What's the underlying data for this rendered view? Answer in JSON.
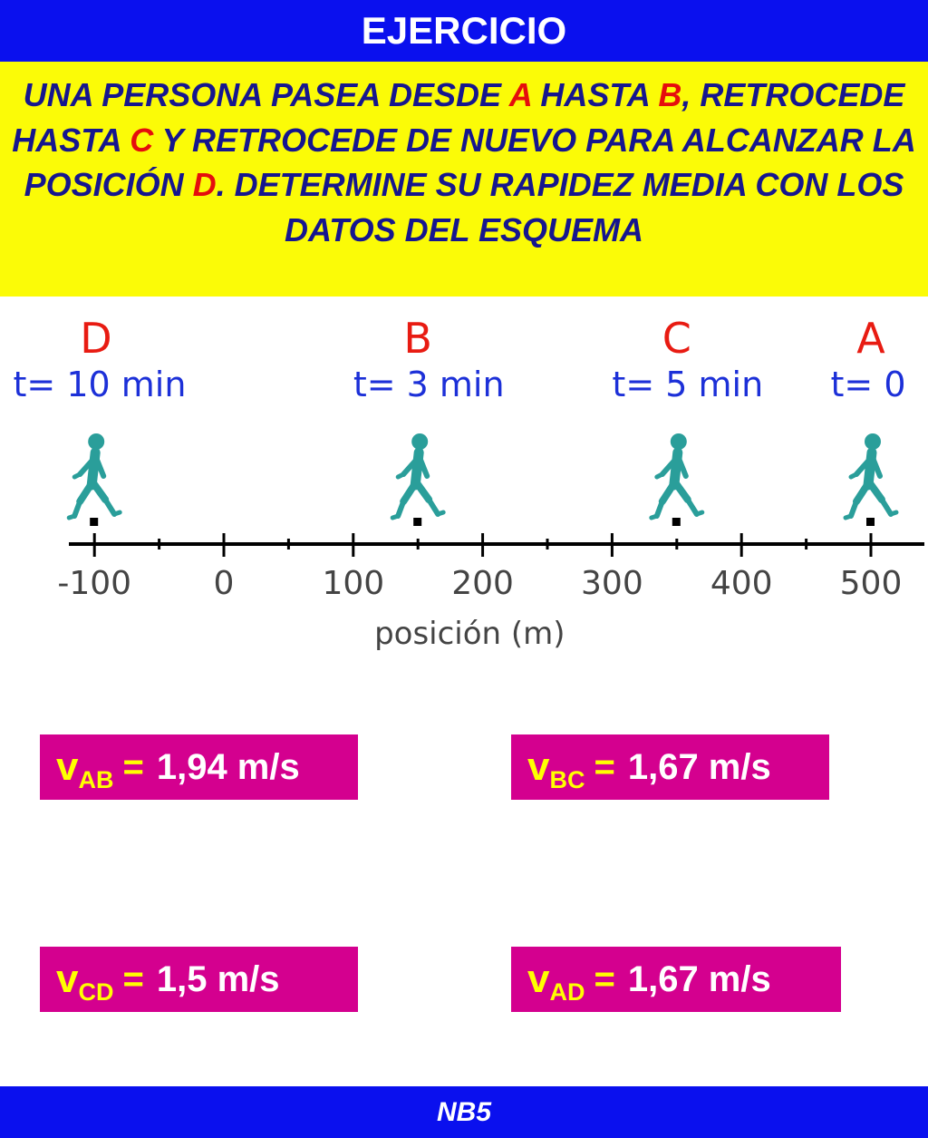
{
  "title": "EJERCICIO",
  "statement": {
    "s1": "UNA PERSONA PASEA DESDE ",
    "p1": "A",
    "s2": " HASTA ",
    "p2": "B",
    "s3": ", RETROCEDE HASTA ",
    "p3": "C",
    "s4": " Y RETROCEDE DE NUEVO PARA ALCANZAR LA POSICIÓN ",
    "p4": "D",
    "s5": ". DETERMINE SU RAPIDEZ MEDIA CON LOS DATOS DEL ESQUEMA"
  },
  "diagram": {
    "axis_label": "posición (m)",
    "ticks": [
      "-100",
      "0",
      "100",
      "200",
      "300",
      "400",
      "500"
    ],
    "points": [
      {
        "label": "D",
        "time": "t= 10 min",
        "position_m": -100
      },
      {
        "label": "B",
        "time": "t= 3 min",
        "position_m": 150
      },
      {
        "label": "C",
        "time": "t= 5 min",
        "position_m": 350
      },
      {
        "label": "A",
        "time": "t= 0",
        "position_m": 500
      }
    ],
    "colors": {
      "point_label": "#e81b12",
      "time_label": "#1c30d8",
      "walker": "#2a9e9a",
      "axis": "#000000"
    },
    "walker_icon": "walking-person-icon"
  },
  "answers": [
    {
      "v": "v",
      "sub": "AB",
      "eq": "=",
      "value": "1,94 m/s"
    },
    {
      "v": "v",
      "sub": "BC",
      "eq": "=",
      "value": "1,67 m/s"
    },
    {
      "v": "v",
      "sub": "CD",
      "eq": "=",
      "value": "1,5 m/s"
    },
    {
      "v": "v",
      "sub": "AD",
      "eq": "=",
      "value": "1,67 m/s"
    }
  ],
  "footer": "NB5"
}
